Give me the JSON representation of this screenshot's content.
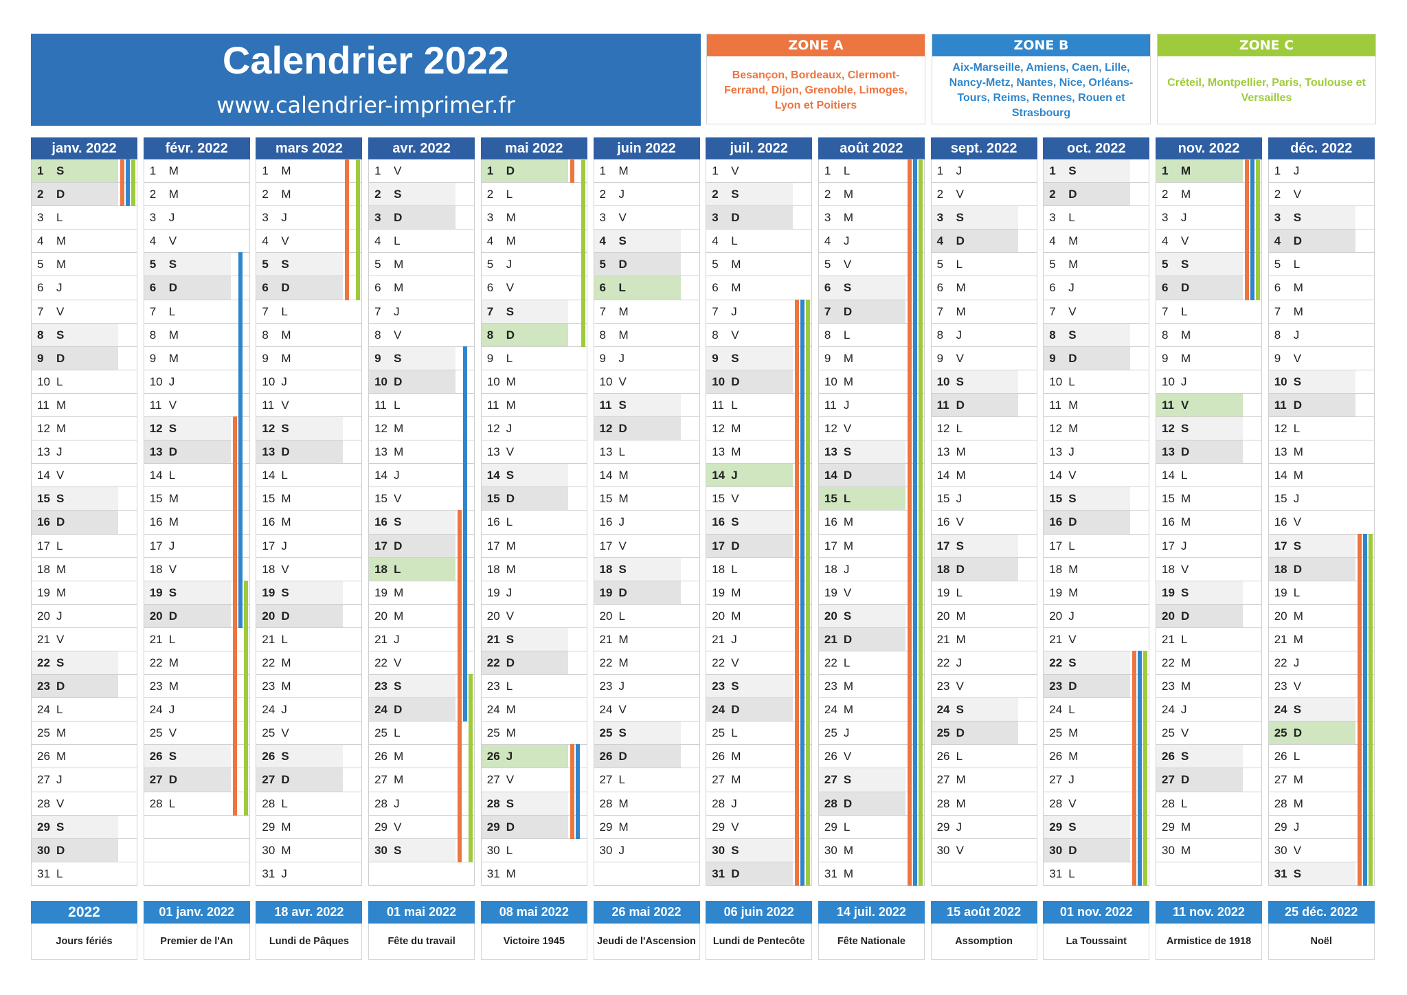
{
  "header": {
    "title": "Calendrier 2022",
    "website": "www.calendrier-imprimer.fr"
  },
  "zones": [
    {
      "label": "ZONE A",
      "color": "#ed7540",
      "cities": "Besançon, Bordeaux, Clermont-Ferrand, Dijon, Grenoble, Limoges, Lyon et Poitiers"
    },
    {
      "label": "ZONE B",
      "color": "#2f86cc",
      "cities": "Aix-Marseille, Amiens, Caen, Lille, Nancy-Metz, Nantes, Nice, Orléans-Tours, Reims, Rennes, Rouen et Strasbourg"
    },
    {
      "label": "ZONE C",
      "color": "#9ecb3b",
      "cities": "Créteil, Montpellier, Paris, Toulouse et Versailles"
    }
  ],
  "colors": {
    "title_bg": "#2f72b8",
    "month_header": "#2f5fa3",
    "holiday_header": "#2f86cc",
    "saturday": "#f1f1f1",
    "sunday": "#e3e3e3",
    "holiday": "#cfe6c0"
  },
  "months": [
    {
      "name": "janv. 2022",
      "start": "S",
      "count": 31,
      "holidays": [
        1
      ]
    },
    {
      "name": "févr. 2022",
      "start": "M",
      "count": 28,
      "holidays": []
    },
    {
      "name": "mars 2022",
      "start": "M",
      "count": 31,
      "holidays": []
    },
    {
      "name": "avr. 2022",
      "start": "V",
      "count": 30,
      "holidays": [
        18
      ]
    },
    {
      "name": "mai 2022",
      "start": "D",
      "count": 31,
      "holidays": [
        1,
        8,
        26
      ]
    },
    {
      "name": "juin 2022",
      "start": "M",
      "count": 30,
      "holidays": [
        6
      ]
    },
    {
      "name": "juil. 2022",
      "start": "V",
      "count": 31,
      "holidays": [
        14
      ]
    },
    {
      "name": "août 2022",
      "start": "L",
      "count": 31,
      "holidays": [
        15
      ]
    },
    {
      "name": "sept. 2022",
      "start": "J",
      "count": 30,
      "holidays": []
    },
    {
      "name": "oct. 2022",
      "start": "S",
      "count": 31,
      "holidays": []
    },
    {
      "name": "nov. 2022",
      "start": "M",
      "count": 30,
      "holidays": [
        1,
        11
      ]
    },
    {
      "name": "déc. 2022",
      "start": "J",
      "count": 31,
      "holidays": [
        25
      ]
    }
  ],
  "school_holidays": {
    "A": [
      [
        0,
        1,
        2
      ],
      [
        1,
        12,
        28
      ],
      [
        2,
        1,
        6
      ],
      [
        3,
        16,
        30
      ],
      [
        4,
        1,
        1
      ],
      [
        4,
        26,
        29
      ],
      [
        6,
        7,
        31
      ],
      [
        7,
        1,
        31
      ],
      [
        9,
        22,
        31
      ],
      [
        10,
        1,
        6
      ],
      [
        11,
        17,
        31
      ]
    ],
    "B": [
      [
        0,
        1,
        2
      ],
      [
        1,
        5,
        20
      ],
      [
        3,
        9,
        24
      ],
      [
        4,
        26,
        29
      ],
      [
        6,
        7,
        31
      ],
      [
        7,
        1,
        31
      ],
      [
        9,
        22,
        31
      ],
      [
        10,
        1,
        6
      ],
      [
        11,
        17,
        31
      ]
    ],
    "C": [
      [
        0,
        1,
        2
      ],
      [
        1,
        19,
        28
      ],
      [
        2,
        1,
        6
      ],
      [
        3,
        23,
        30
      ],
      [
        4,
        1,
        8
      ],
      [
        6,
        7,
        31
      ],
      [
        7,
        1,
        31
      ],
      [
        9,
        22,
        31
      ],
      [
        10,
        1,
        6
      ],
      [
        11,
        17,
        31
      ]
    ]
  },
  "public_holidays": {
    "year_label": "2022",
    "year_caption": "Jours fériés",
    "items": [
      {
        "date": "01 janv. 2022",
        "name": "Premier de l'An"
      },
      {
        "date": "18 avr. 2022",
        "name": "Lundi de Pâques"
      },
      {
        "date": "01 mai 2022",
        "name": "Fête du travail"
      },
      {
        "date": "08 mai 2022",
        "name": "Victoire 1945"
      },
      {
        "date": "26 mai 2022",
        "name": "Jeudi de l'Ascension"
      },
      {
        "date": "06 juin 2022",
        "name": "Lundi de Pentecôte"
      },
      {
        "date": "14 juil. 2022",
        "name": "Fête Nationale"
      },
      {
        "date": "15 août 2022",
        "name": "Assomption"
      },
      {
        "date": "01 nov. 2022",
        "name": "La Toussaint"
      },
      {
        "date": "11 nov. 2022",
        "name": "Armistice de 1918"
      },
      {
        "date": "25 déc. 2022",
        "name": "Noël"
      }
    ]
  }
}
